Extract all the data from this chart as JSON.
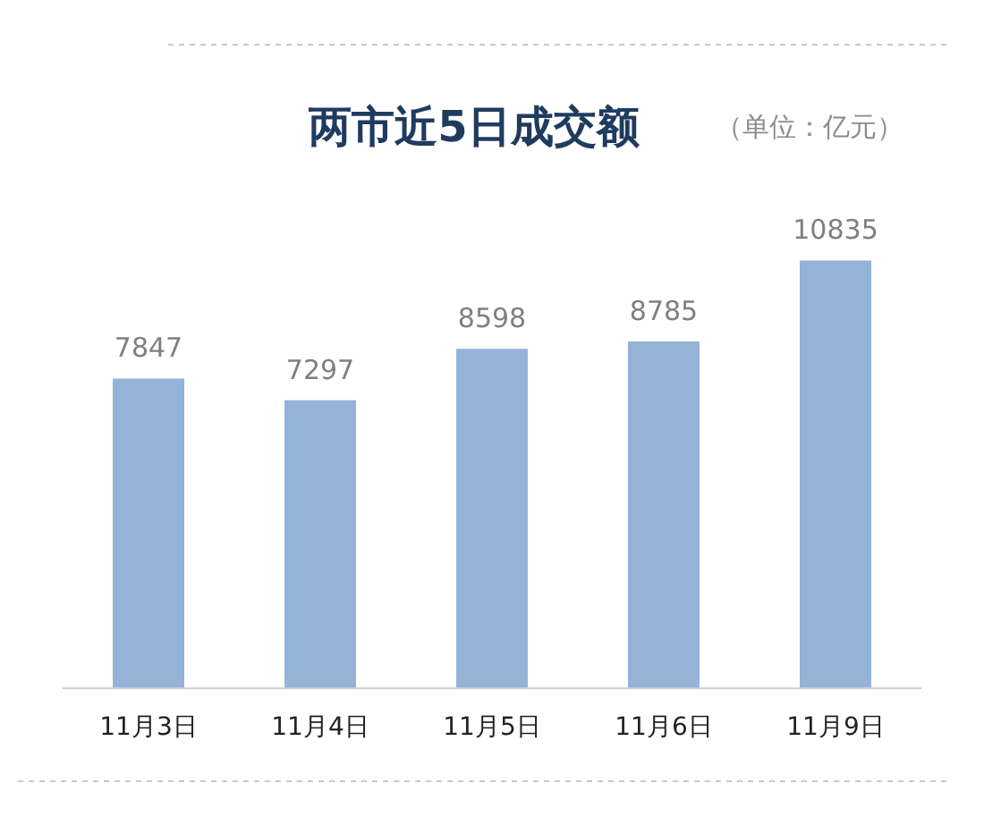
{
  "chart_data": {
    "type": "bar",
    "title": "两市近5日成交额",
    "subtitle": "（单位：亿元）",
    "categories": [
      "11月3日",
      "11月4日",
      "11月5日",
      "11月6日",
      "11月9日"
    ],
    "values": [
      7847,
      7297,
      8598,
      8785,
      10835
    ],
    "color": "#95b3d7",
    "data_labels": true,
    "grid": false,
    "legend": false
  }
}
